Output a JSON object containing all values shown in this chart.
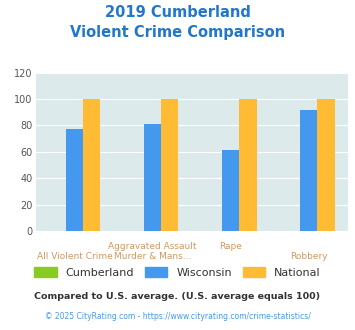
{
  "title_line1": "2019 Cumberland",
  "title_line2": "Violent Crime Comparison",
  "cumberland_values": [
    0,
    0,
    0,
    0
  ],
  "wisconsin_values": [
    77,
    81,
    61,
    92
  ],
  "national_values": [
    100,
    100,
    100,
    100
  ],
  "n_groups": 4,
  "xlabels_top": [
    "",
    "Aggravated Assault",
    "Rape",
    ""
  ],
  "xlabels_bot": [
    "All Violent Crime",
    "Murder & Mans...",
    "",
    "Robbery"
  ],
  "colors": {
    "cumberland": "#88cc22",
    "wisconsin": "#4499ee",
    "national": "#ffbb33"
  },
  "ylim": [
    0,
    120
  ],
  "yticks": [
    0,
    20,
    40,
    60,
    80,
    100,
    120
  ],
  "bg_color": "#ddeaec",
  "title_color": "#2277cc",
  "xlabel_color_top": "#cc9966",
  "xlabel_color_bot": "#cc9966",
  "footer1": "Compared to U.S. average. (U.S. average equals 100)",
  "footer2": "© 2025 CityRating.com - https://www.cityrating.com/crime-statistics/",
  "footer1_color": "#333333",
  "footer2_color": "#4499ee",
  "grid_color": "#ffffff",
  "bar_width": 0.22
}
